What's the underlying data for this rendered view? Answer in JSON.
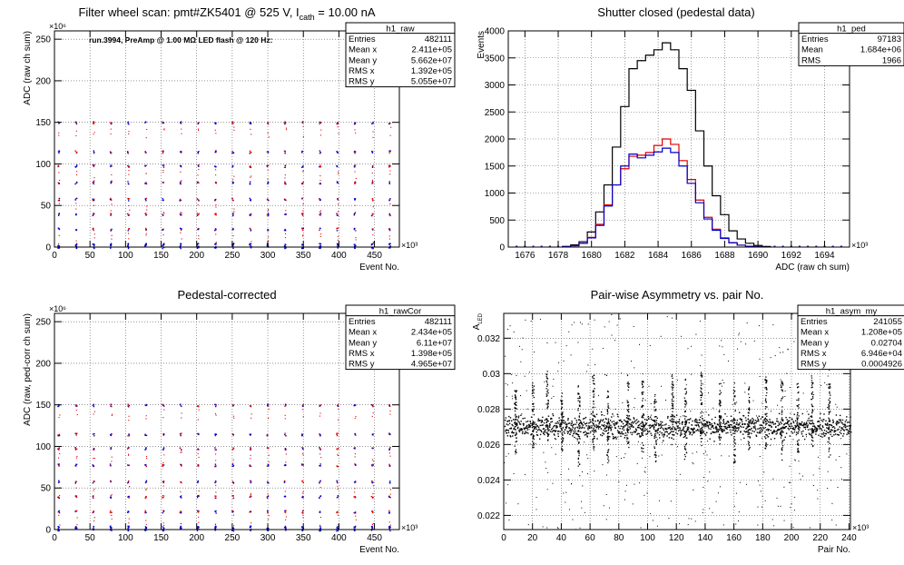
{
  "colors": {
    "frame": "#000000",
    "grid": "#555555",
    "red": "#e00000",
    "blue": "#0000c8",
    "black": "#000000",
    "bg": "#ffffff"
  },
  "chart_data": [
    {
      "id": "p1",
      "type": "scatter",
      "title": "Filter wheel scan: pmt#ZK5401 @   525 V, I",
      "title_sub": "cath",
      "title_tail": " = 10.00 nA",
      "annotation": "run.3994, PreAmp @ 1.00 MΩ LED flash @  120 Hz:",
      "xlabel": "Event No.",
      "ylabel": "ADC (raw ch sum)",
      "xexp": "×10³",
      "yexp": "×10⁶",
      "xlim": [
        0,
        485
      ],
      "ylim": [
        0,
        260
      ],
      "xticks": [
        0,
        50,
        100,
        150,
        200,
        250,
        300,
        350,
        400,
        450
      ],
      "xtick_labels": [
        "0",
        "50",
        "100",
        "150",
        "200",
        "250",
        "300",
        "350",
        "400",
        "450"
      ],
      "yticks": [
        0,
        50,
        100,
        150,
        200,
        250
      ],
      "ytick_labels": [
        "0",
        "50",
        "100",
        "150",
        "200",
        "250"
      ],
      "stats": {
        "name": "h1_raw",
        "rows": [
          [
            "Entries",
            "482111"
          ],
          [
            "Mean x",
            "2.411e+05"
          ],
          [
            "Mean y",
            "5.662e+07"
          ],
          [
            "RMS x",
            "1.392e+05"
          ],
          [
            "RMS y",
            "5.055e+07"
          ]
        ]
      },
      "levels": [
        150,
        115,
        98,
        78,
        58,
        40,
        22,
        2
      ],
      "period": 24.5,
      "x_start": 4,
      "x_end": 482
    },
    {
      "id": "p2",
      "type": "line",
      "title": "Shutter closed (pedestal data)",
      "xlabel": "ADC (raw ch sum)",
      "ylabel": "Events",
      "xexp": "×10³",
      "xlim": [
        1675,
        1695.5
      ],
      "ylim": [
        0,
        4000
      ],
      "xticks": [
        1676,
        1678,
        1680,
        1682,
        1684,
        1686,
        1688,
        1690,
        1692,
        1694
      ],
      "xtick_labels": [
        "1676",
        "1678",
        "1680",
        "1682",
        "1684",
        "1686",
        "1688",
        "1690",
        "1692",
        "1694"
      ],
      "yticks": [
        0,
        500,
        1000,
        1500,
        2000,
        2500,
        3000,
        3500,
        4000
      ],
      "ytick_labels": [
        "0",
        "500",
        "1000",
        "1500",
        "2000",
        "2500",
        "3000",
        "3500",
        "4000"
      ],
      "stats": {
        "name": "h1_ped",
        "rows": [
          [
            "Entries",
            "97183"
          ],
          [
            "Mean",
            "1.684e+06"
          ],
          [
            "RMS",
            "1966"
          ]
        ]
      },
      "series": [
        {
          "color": "black",
          "x": [
            1678.5,
            1679,
            1679.5,
            1680,
            1680.5,
            1681,
            1681.5,
            1682,
            1682.5,
            1683,
            1683.5,
            1684,
            1684.5,
            1685,
            1685.5,
            1686,
            1686.5,
            1687,
            1687.5,
            1688,
            1688.5,
            1689,
            1689.5,
            1690,
            1690.5
          ],
          "values": [
            10,
            40,
            100,
            280,
            650,
            1150,
            1850,
            2600,
            3300,
            3450,
            3550,
            3650,
            3780,
            3650,
            3300,
            2900,
            2150,
            1500,
            950,
            600,
            300,
            150,
            70,
            30,
            10
          ]
        },
        {
          "color": "red",
          "x": [
            1678.5,
            1679,
            1679.5,
            1680,
            1680.5,
            1681,
            1681.5,
            1682,
            1682.5,
            1683,
            1683.5,
            1684,
            1684.5,
            1685,
            1685.5,
            1686,
            1686.5,
            1687,
            1687.5,
            1688,
            1688.5,
            1689,
            1689.5,
            1690
          ],
          "values": [
            8,
            25,
            70,
            180,
            420,
            780,
            1150,
            1450,
            1680,
            1700,
            1750,
            1880,
            2000,
            1900,
            1600,
            1250,
            870,
            550,
            330,
            170,
            80,
            35,
            15,
            5
          ]
        },
        {
          "color": "blue",
          "x": [
            1678.5,
            1679,
            1679.5,
            1680,
            1680.5,
            1681,
            1681.5,
            1682,
            1682.5,
            1683,
            1683.5,
            1684,
            1684.5,
            1685,
            1685.5,
            1686,
            1686.5,
            1687,
            1687.5,
            1688,
            1688.5,
            1689,
            1689.5,
            1690
          ],
          "values": [
            8,
            25,
            70,
            170,
            400,
            760,
            1150,
            1500,
            1720,
            1650,
            1700,
            1760,
            1830,
            1750,
            1500,
            1180,
            820,
            520,
            310,
            160,
            80,
            35,
            15,
            5
          ]
        }
      ]
    },
    {
      "id": "p3",
      "type": "scatter",
      "title": "Pedestal-corrected",
      "xlabel": "Event No.",
      "ylabel": "ADC (raw, ped-corr ch sum)",
      "xexp": "×10³",
      "yexp": "×10⁶",
      "xlim": [
        0,
        485
      ],
      "ylim": [
        0,
        260
      ],
      "xticks": [
        0,
        50,
        100,
        150,
        200,
        250,
        300,
        350,
        400,
        450
      ],
      "xtick_labels": [
        "0",
        "50",
        "100",
        "150",
        "200",
        "250",
        "300",
        "350",
        "400",
        "450"
      ],
      "yticks": [
        0,
        50,
        100,
        150,
        200,
        250
      ],
      "ytick_labels": [
        "0",
        "50",
        "100",
        "150",
        "200",
        "250"
      ],
      "stats": {
        "name": "h1_rawCor",
        "rows": [
          [
            "Entries",
            "482111"
          ],
          [
            "Mean x",
            "2.434e+05"
          ],
          [
            "Mean y",
            "6.11e+07"
          ],
          [
            "RMS x",
            "1.398e+05"
          ],
          [
            "RMS y",
            "4.965e+07"
          ]
        ]
      },
      "levels": [
        150,
        115,
        98,
        78,
        58,
        40,
        22,
        2
      ],
      "period": 24.5,
      "x_start": 4,
      "x_end": 482
    },
    {
      "id": "p4",
      "type": "scatter",
      "title": "Pair-wise Asymmetry vs. pair No.",
      "xlabel": "Pair No.",
      "ylabel": "A",
      "ylabel_sub": "LED",
      "xexp": "×10³",
      "xlim": [
        0,
        241
      ],
      "ylim": [
        0.0212,
        0.0334
      ],
      "xticks": [
        0,
        20,
        40,
        60,
        80,
        100,
        120,
        140,
        160,
        180,
        200,
        220,
        240
      ],
      "xtick_labels": [
        "0",
        "20",
        "40",
        "60",
        "80",
        "100",
        "120",
        "140",
        "160",
        "180",
        "200",
        "220",
        "240"
      ],
      "yticks": [
        0.022,
        0.024,
        0.026,
        0.028,
        0.03,
        0.032
      ],
      "ytick_labels": [
        "0.022",
        "0.024",
        "0.026",
        "0.028",
        "0.03",
        "0.032"
      ],
      "stats": {
        "name": "h1_asym_my",
        "rows": [
          [
            "Entries",
            "241055"
          ],
          [
            "Mean x",
            "1.208e+05"
          ],
          [
            "Mean y",
            "0.02704"
          ],
          [
            "RMS x",
            "6.946e+04"
          ],
          [
            "RMS y",
            "0.0004926"
          ]
        ]
      },
      "band_center": 0.02704,
      "band_width": 0.0006,
      "spikes": [
        {
          "x": 8,
          "hi": 0.0291,
          "lo": 0.0255
        },
        {
          "x": 20,
          "hi": 0.0295,
          "lo": 0.0258
        },
        {
          "x": 30,
          "hi": 0.0302,
          "lo": 0.0262
        },
        {
          "x": 40,
          "hi": 0.029,
          "lo": 0.0256
        },
        {
          "x": 52,
          "hi": 0.0295,
          "lo": 0.0248
        },
        {
          "x": 62,
          "hi": 0.03,
          "lo": 0.0258
        },
        {
          "x": 72,
          "hi": 0.0291,
          "lo": 0.0248
        },
        {
          "x": 86,
          "hi": 0.0298,
          "lo": 0.0258
        },
        {
          "x": 96,
          "hi": 0.03,
          "lo": 0.0256
        },
        {
          "x": 105,
          "hi": 0.029,
          "lo": 0.025
        },
        {
          "x": 117,
          "hi": 0.0302,
          "lo": 0.0255
        },
        {
          "x": 126,
          "hi": 0.0298,
          "lo": 0.025
        },
        {
          "x": 137,
          "hi": 0.0302,
          "lo": 0.0258
        },
        {
          "x": 150,
          "hi": 0.0295,
          "lo": 0.0258
        },
        {
          "x": 160,
          "hi": 0.03,
          "lo": 0.025
        },
        {
          "x": 170,
          "hi": 0.0293,
          "lo": 0.0256
        },
        {
          "x": 182,
          "hi": 0.03,
          "lo": 0.0258
        },
        {
          "x": 193,
          "hi": 0.0298,
          "lo": 0.0248
        },
        {
          "x": 204,
          "hi": 0.0295,
          "lo": 0.0256
        },
        {
          "x": 214,
          "hi": 0.03,
          "lo": 0.0258
        },
        {
          "x": 226,
          "hi": 0.0296,
          "lo": 0.025
        }
      ]
    }
  ]
}
